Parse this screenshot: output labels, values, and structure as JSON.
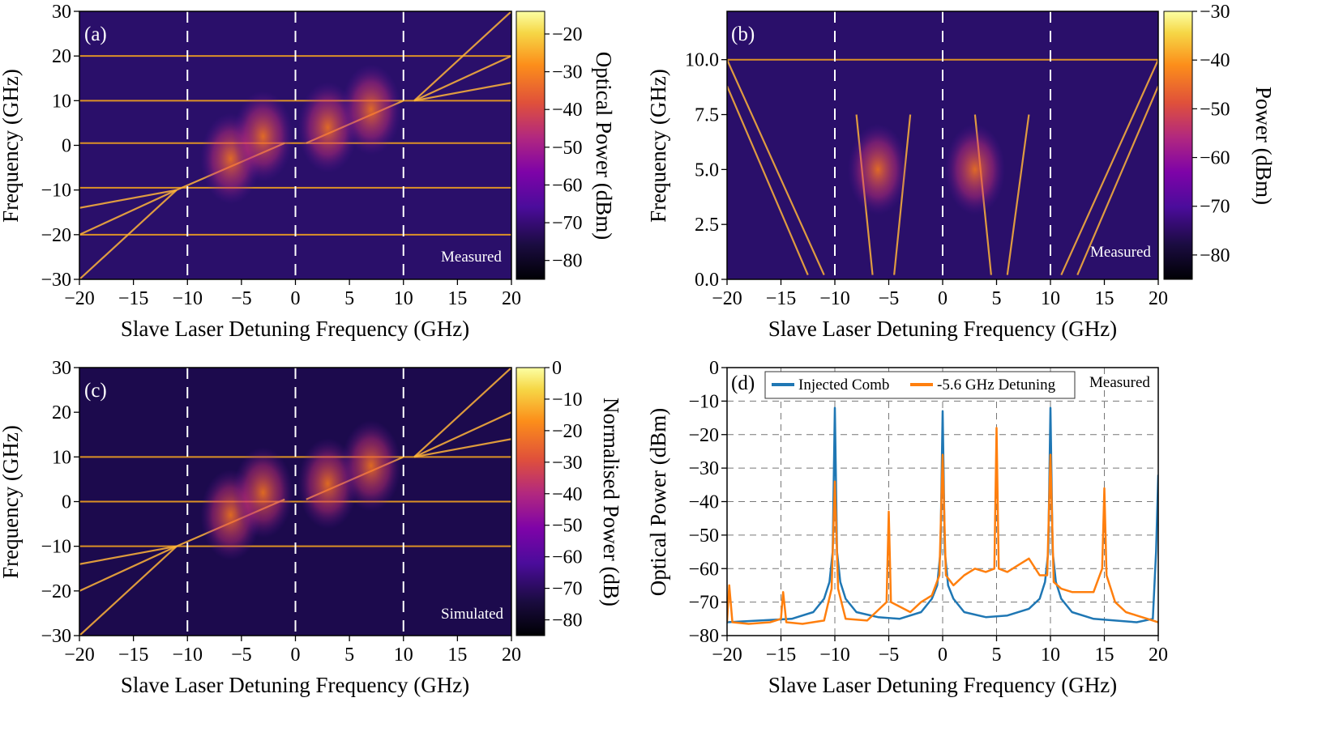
{
  "chart_data": [
    {
      "panel": "(a)",
      "type": "heatmap",
      "xlabel": "Slave Laser Detuning Frequency (GHz)",
      "ylabel": "Frequency (GHz)",
      "xlim": [
        -20,
        20
      ],
      "ylim": [
        -30,
        30
      ],
      "xticks": [
        "−20",
        "−15",
        "−10",
        "−5",
        "0",
        "5",
        "10",
        "15",
        "20"
      ],
      "yticks": [
        "−30",
        "−20",
        "−10",
        "0",
        "10",
        "20",
        "30"
      ],
      "colorbar_label": "Optical Power (dBm)",
      "colorbar_range": [
        -85,
        -14
      ],
      "colorbar_ticks": [
        "−20",
        "−30",
        "−40",
        "−50",
        "−60",
        "−70",
        "−80"
      ],
      "annotation": "Measured",
      "horizontal_lines": [
        20,
        10,
        0.5,
        -9.5,
        -20
      ],
      "dashed_markers": [
        -10,
        0,
        10
      ],
      "grid": false
    },
    {
      "panel": "(b)",
      "type": "heatmap",
      "xlabel": "Slave Laser Detuning Frequency (GHz)",
      "ylabel": "Frequency (GHz)",
      "xlim": [
        -20,
        20
      ],
      "ylim": [
        0,
        12.2
      ],
      "xticks": [
        "−20",
        "−15",
        "−10",
        "−5",
        "0",
        "5",
        "10",
        "15",
        "20"
      ],
      "yticks": [
        "0.0",
        "2.5",
        "5.0",
        "7.5",
        "10.0"
      ],
      "colorbar_label": "Power (dBm)",
      "colorbar_range": [
        -85,
        -30
      ],
      "colorbar_ticks": [
        "−30",
        "−40",
        "−50",
        "−60",
        "−70",
        "−80"
      ],
      "annotation": "Measured",
      "horizontal_lines": [
        10
      ],
      "dashed_markers": [
        -10,
        0,
        10
      ],
      "grid": false
    },
    {
      "panel": "(c)",
      "type": "heatmap",
      "xlabel": "Slave Laser Detuning Frequency (GHz)",
      "ylabel": "Frequency (GHz)",
      "xlim": [
        -20,
        20
      ],
      "ylim": [
        -30,
        30
      ],
      "xticks": [
        "−20",
        "−15",
        "−10",
        "−5",
        "0",
        "5",
        "10",
        "15",
        "20"
      ],
      "yticks": [
        "−30",
        "−20",
        "−10",
        "0",
        "10",
        "20",
        "30"
      ],
      "colorbar_label": "Normalised Power (dB)",
      "colorbar_range": [
        -85,
        0
      ],
      "colorbar_ticks": [
        "0",
        "−10",
        "−20",
        "−30",
        "−40",
        "−50",
        "−60",
        "−70",
        "−80"
      ],
      "annotation": "Simulated",
      "horizontal_lines": [
        10,
        0,
        -10
      ],
      "dashed_markers": [
        -10,
        0,
        10
      ],
      "grid": false
    },
    {
      "panel": "(d)",
      "type": "line",
      "xlabel": "Slave Laser Detuning Frequency (GHz)",
      "ylabel": "Optical Power (dBm)",
      "xlim": [
        -20,
        20
      ],
      "ylim": [
        -80,
        0
      ],
      "xticks": [
        "−20",
        "−15",
        "−10",
        "−5",
        "0",
        "5",
        "10",
        "15",
        "20"
      ],
      "yticks": [
        "0",
        "−10",
        "−20",
        "−30",
        "−40",
        "−50",
        "−60",
        "−70",
        "−80"
      ],
      "annotation": "Measured",
      "grid": true,
      "legend_position": "top-left",
      "series": [
        {
          "name": "Injected Comb",
          "color": "#1f77b4",
          "x": [
            -20,
            -17,
            -14,
            -12,
            -11,
            -10.5,
            -10.2,
            -10,
            -9.8,
            -9.5,
            -9,
            -8,
            -6,
            -4,
            -2,
            -1,
            -0.5,
            -0.2,
            0,
            0.2,
            0.5,
            1,
            2,
            4,
            6,
            8,
            9,
            9.5,
            9.8,
            10,
            10.2,
            10.5,
            11,
            12,
            14,
            16,
            18,
            19.5,
            19.8,
            20
          ],
          "y": [
            -76,
            -75.5,
            -75,
            -73,
            -69,
            -64,
            -55,
            -12,
            -55,
            -64,
            -69,
            -73,
            -74.5,
            -75,
            -73,
            -69,
            -65,
            -55,
            -13,
            -55,
            -65,
            -69,
            -73,
            -74.5,
            -74,
            -72,
            -69,
            -64,
            -55,
            -12,
            -55,
            -64,
            -69,
            -73,
            -75,
            -75.5,
            -76,
            -75,
            -55,
            -32
          ]
        },
        {
          "name": "-5.6 GHz Detuning",
          "color": "#ff7f0e",
          "x": [
            -20,
            -19.8,
            -19.5,
            -18,
            -16,
            -15,
            -14.8,
            -14.5,
            -13,
            -11,
            -10.3,
            -10,
            -9.7,
            -9,
            -7,
            -5.2,
            -5,
            -4.8,
            -3,
            -2,
            -1,
            -0.3,
            0,
            0.3,
            1,
            2,
            3,
            4,
            4.8,
            5,
            5.2,
            6,
            7,
            8,
            9,
            9.7,
            10,
            10.3,
            11,
            12,
            13,
            14,
            14.8,
            15,
            15.2,
            16,
            17,
            18,
            19,
            20
          ],
          "y": [
            -76,
            -65,
            -76,
            -76.5,
            -76,
            -75,
            -67,
            -76,
            -76.5,
            -75.5,
            -66,
            -34,
            -66,
            -75,
            -75.5,
            -70,
            -43,
            -70,
            -73,
            -70,
            -68,
            -62,
            -26,
            -62,
            -65,
            -62,
            -60,
            -61,
            -60,
            -18,
            -60,
            -61,
            -59,
            -57,
            -62,
            -62,
            -26,
            -64,
            -66,
            -67,
            -67,
            -67,
            -60,
            -36,
            -62,
            -70,
            -73,
            -74,
            -75,
            -76
          ]
        }
      ]
    }
  ]
}
